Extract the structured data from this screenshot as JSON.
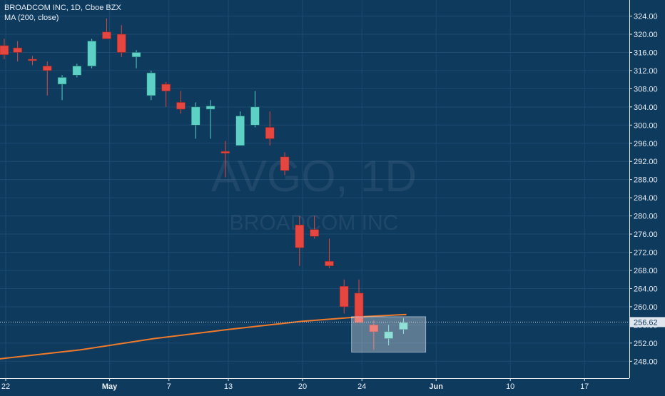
{
  "header": {
    "symbol_line": "BROADCOM INC, 1D, Cboe BZX",
    "indicator_line": "MA (200, close)"
  },
  "watermark": {
    "ticker": "AVGO, 1D",
    "company": "BROADCOM INC"
  },
  "colors": {
    "background": "#0e3a5e",
    "up": "#5ed1c6",
    "down": "#e5463f",
    "ma": "#f07a2a",
    "price_label_bg": "#dfe6ee",
    "axis_text": "#e8eef4",
    "grid": "#1c4a70"
  },
  "chart_data": {
    "type": "candlestick",
    "title": "BROADCOM INC, 1D, Cboe BZX",
    "ylim": [
      245,
      326
    ],
    "y_ticks": [
      248,
      252,
      256,
      260,
      264,
      268,
      272,
      276,
      280,
      284,
      288,
      292,
      296,
      300,
      304,
      308,
      312,
      316,
      320,
      324
    ],
    "x_ticks": [
      {
        "label": "22",
        "idx": 0
      },
      {
        "label": "May",
        "idx": 7
      },
      {
        "label": "7",
        "idx": 11
      },
      {
        "label": "13",
        "idx": 15
      },
      {
        "label": "20",
        "idx": 20
      },
      {
        "label": "24",
        "idx": 24
      },
      {
        "label": "Jun",
        "idx": 29
      },
      {
        "label": "10",
        "idx": 34
      },
      {
        "label": "17",
        "idx": 39
      }
    ],
    "last_price": 256.62,
    "series": [
      {
        "type": "candles",
        "candles": [
          {
            "idx": -0.1,
            "o": 317.5,
            "h": 319.0,
            "l": 314.5,
            "c": 315.5
          },
          {
            "idx": 0.8,
            "o": 317.0,
            "h": 318.5,
            "l": 314.0,
            "c": 316.0
          },
          {
            "idx": 1.8,
            "o": 314.5,
            "h": 315.2,
            "l": 313.2,
            "c": 314.3
          },
          {
            "idx": 2.8,
            "o": 313.0,
            "h": 314.0,
            "l": 306.5,
            "c": 312.0
          },
          {
            "idx": 3.8,
            "o": 309.0,
            "h": 311.0,
            "l": 305.5,
            "c": 310.5
          },
          {
            "idx": 4.8,
            "o": 311.0,
            "h": 313.5,
            "l": 310.5,
            "c": 313.0
          },
          {
            "idx": 5.8,
            "o": 313.0,
            "h": 319.0,
            "l": 312.5,
            "c": 318.5
          },
          {
            "idx": 6.8,
            "o": 320.5,
            "h": 323.5,
            "l": 319.0,
            "c": 319.0
          },
          {
            "idx": 7.8,
            "o": 320.0,
            "h": 322.0,
            "l": 315.0,
            "c": 316.0
          },
          {
            "idx": 8.8,
            "o": 315.0,
            "h": 316.5,
            "l": 312.5,
            "c": 316.0
          },
          {
            "idx": 9.8,
            "o": 306.5,
            "h": 312.0,
            "l": 305.5,
            "c": 311.5
          },
          {
            "idx": 10.8,
            "o": 309.0,
            "h": 309.5,
            "l": 304.0,
            "c": 307.5
          },
          {
            "idx": 11.8,
            "o": 305.0,
            "h": 307.5,
            "l": 302.5,
            "c": 303.5
          },
          {
            "idx": 12.8,
            "o": 300.0,
            "h": 305.0,
            "l": 297.0,
            "c": 304.0
          },
          {
            "idx": 13.8,
            "o": 303.5,
            "h": 305.5,
            "l": 297.0,
            "c": 304.2
          },
          {
            "idx": 14.8,
            "o": 294.2,
            "h": 296.5,
            "l": 288.5,
            "c": 293.8
          },
          {
            "idx": 15.8,
            "o": 295.5,
            "h": 303.0,
            "l": 295.5,
            "c": 302.0
          },
          {
            "idx": 16.8,
            "o": 300.0,
            "h": 307.5,
            "l": 299.5,
            "c": 304.0
          },
          {
            "idx": 17.8,
            "o": 299.5,
            "h": 303.0,
            "l": 295.5,
            "c": 297.0
          },
          {
            "idx": 18.8,
            "o": 293.0,
            "h": 294.0,
            "l": 289.0,
            "c": 290.0
          },
          {
            "idx": 19.8,
            "o": 278.0,
            "h": 280.0,
            "l": 269.0,
            "c": 273.0
          },
          {
            "idx": 20.8,
            "o": 277.0,
            "h": 280.0,
            "l": 275.0,
            "c": 275.5
          },
          {
            "idx": 21.8,
            "o": 270.0,
            "h": 275.0,
            "l": 268.5,
            "c": 269.0
          },
          {
            "idx": 22.8,
            "o": 264.5,
            "h": 266.0,
            "l": 258.5,
            "c": 260.0
          },
          {
            "idx": 23.8,
            "o": 263.0,
            "h": 266.0,
            "l": 257.0,
            "c": 256.5
          },
          {
            "idx": 24.8,
            "o": 256.0,
            "h": 257.0,
            "l": 250.5,
            "c": 254.5
          },
          {
            "idx": 25.8,
            "o": 253.0,
            "h": 256.0,
            "l": 251.5,
            "c": 254.5
          },
          {
            "idx": 26.8,
            "o": 255.0,
            "h": 257.5,
            "l": 254.0,
            "c": 256.5
          }
        ]
      },
      {
        "name": "MA (200, close)",
        "type": "line",
        "points": [
          {
            "idx": -0.5,
            "v": 248.5
          },
          {
            "idx": 5,
            "v": 250.5
          },
          {
            "idx": 10,
            "v": 253.0
          },
          {
            "idx": 15,
            "v": 255.0
          },
          {
            "idx": 20,
            "v": 256.8
          },
          {
            "idx": 24,
            "v": 257.8
          },
          {
            "idx": 27,
            "v": 258.3
          }
        ]
      }
    ],
    "highlight_box": {
      "idx_from": 23.3,
      "idx_to": 28.3,
      "y_from": 250.0,
      "y_to": 257.8
    }
  }
}
